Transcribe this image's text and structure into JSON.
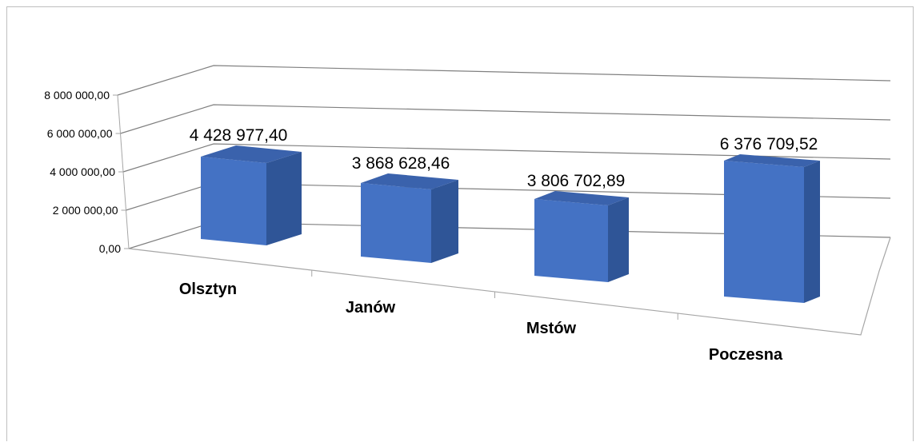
{
  "colors": {
    "bar_front": "#4472C4",
    "bar_side": "#2F5597",
    "bar_top": "#3A62AC",
    "gridline": "#808080",
    "axis": "#a6a6a6",
    "chart_border": "#bfbfbf"
  },
  "chart_data": {
    "type": "bar",
    "style": "3d-column",
    "categories": [
      "Olsztyn",
      "Janów",
      "Mstów",
      "Poczesna"
    ],
    "values": [
      4428977.4,
      3868628.46,
      3806702.89,
      6376709.52
    ],
    "data_labels": [
      "4 428 977,40",
      "3 868 628,46",
      "3 806 702,89",
      "6 376 709,52"
    ],
    "title": "",
    "xlabel": "",
    "ylabel": "",
    "ylim": [
      0,
      8000000
    ],
    "yticks": [
      0,
      2000000,
      4000000,
      6000000,
      8000000
    ],
    "ytick_labels": [
      "0,00",
      "2 000 000,00",
      "4 000 000,00",
      "6 000 000,00",
      "8 000 000,00"
    ],
    "grid": true,
    "legend": "none"
  }
}
